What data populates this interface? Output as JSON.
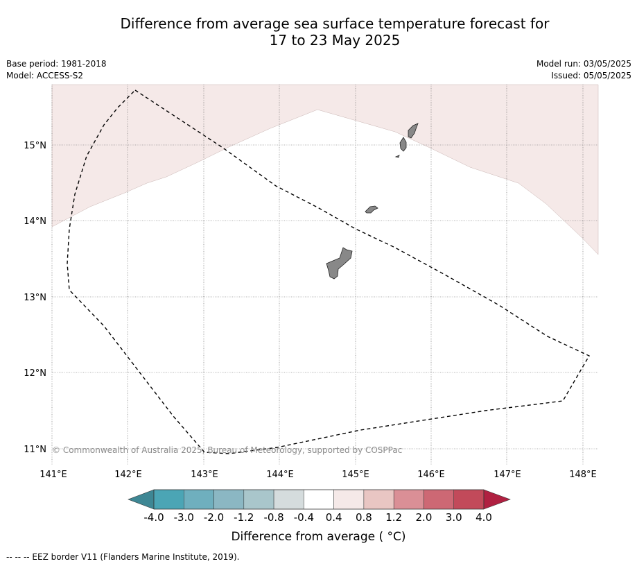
{
  "title_line1": "Difference from average sea surface temperature forecast for",
  "title_line2": "17 to 23 May 2025",
  "meta": {
    "base_period": "Base period: 1981-2018",
    "model": "Model: ACCESS-S2",
    "model_run": "Model run: 03/05/2025",
    "issued": "Issued: 05/05/2025"
  },
  "map": {
    "lon_labels": [
      "141°E",
      "142°E",
      "143°E",
      "144°E",
      "145°E",
      "146°E",
      "147°E",
      "148°E"
    ],
    "lat_labels": [
      "15°N",
      "14°N",
      "13°N",
      "12°N",
      "11°N"
    ],
    "copyright": "© Commonwealth of Australia 2025, Bureau of Meteorology, supported by COSPPac",
    "anomaly_region_color": "#f5e9e8",
    "land_color": "#888888"
  },
  "colorbar": {
    "ticks": [
      "-4.0",
      "-3.0",
      "-2.0",
      "-1.2",
      "-0.8",
      "-0.4",
      "0.4",
      "0.8",
      "1.2",
      "2.0",
      "3.0",
      "4.0"
    ],
    "colors": [
      "#4ba5b5",
      "#6fafbe",
      "#8bb7c3",
      "#a9c6cb",
      "#d5dcdd",
      "#ffffff",
      "#f5e9e8",
      "#e9c6c3",
      "#da8f96",
      "#cd6874",
      "#c24a5a"
    ],
    "under_color": "#3e8794",
    "over_color": "#b02041",
    "title": "Difference from average ( °C)"
  },
  "legend_note": "--  --  -- EEZ border V11 (Flanders Marine Institute, 2019)."
}
